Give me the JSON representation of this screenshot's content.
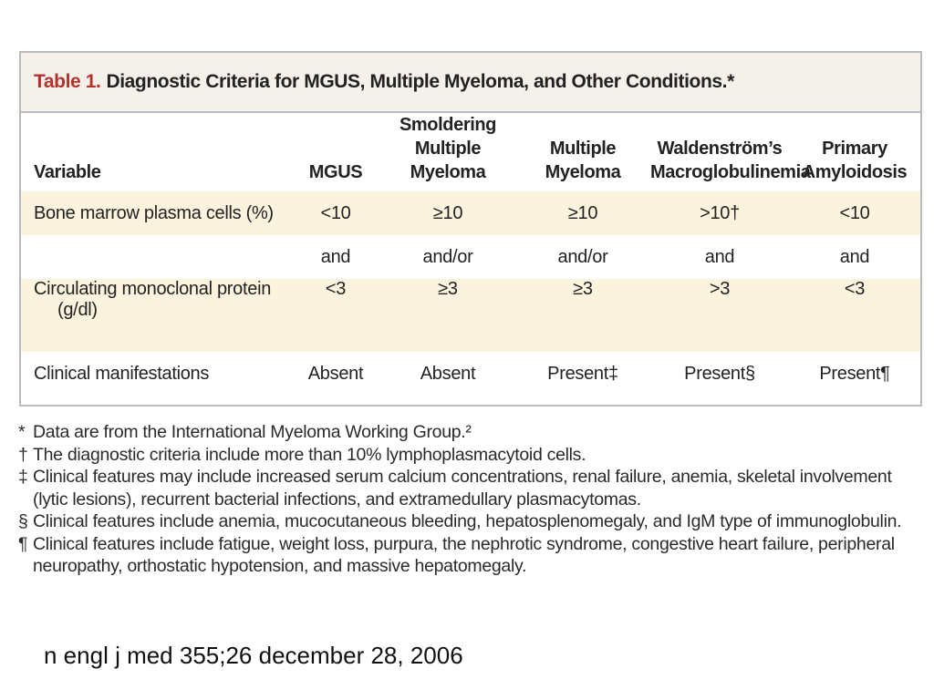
{
  "table": {
    "label": "Table 1.",
    "title": "Diagnostic Criteria for MGUS, Multiple Myeloma, and Other Conditions.*",
    "headers": [
      "Variable",
      "MGUS",
      "Smoldering Multiple Myeloma",
      "Multiple Myeloma",
      "Waldenström’s Macroglobulinemia",
      "Primary Amyloidosis"
    ],
    "rows": [
      {
        "variable": "Bone marrow plasma cells (%)",
        "variable_cont": "",
        "cells": [
          "<10",
          "≥10",
          "≥10",
          ">10†",
          "<10"
        ]
      },
      {
        "variable": "",
        "variable_cont": "",
        "cells": [
          "and",
          "and/or",
          "and/or",
          "and",
          "and"
        ]
      },
      {
        "variable": "Circulating monoclonal protein",
        "variable_cont": "(g/dl)",
        "cells": [
          "<3",
          "≥3",
          "≥3",
          ">3",
          "<3"
        ]
      },
      {
        "variable": "Clinical manifestations",
        "variable_cont": "",
        "cells": [
          "Absent",
          "Absent",
          "Present‡",
          "Present§",
          "Present¶"
        ]
      }
    ]
  },
  "footnotes": [
    {
      "mark": "*",
      "text": "Data are from the International Myeloma Working Group.²"
    },
    {
      "mark": "†",
      "text": "The diagnostic criteria include more than 10% lymphoplasmacytoid cells."
    },
    {
      "mark": "‡",
      "text": "Clinical features may include increased serum calcium concentrations, renal failure, anemia, skeletal involvement (lytic lesions), recurrent bacterial infections, and extramedullary plasmacytomas."
    },
    {
      "mark": "§",
      "text": "Clinical features include anemia, mucocutaneous bleeding, hepatosplenomegaly, and IgM type of immunoglobulin."
    },
    {
      "mark": "¶",
      "text": "Clinical features include fatigue, weight loss, purpura, the nephrotic syndrome, congestive heart failure, peripheral neuropathy, orthostatic hypotension, and massive hepatomegaly."
    }
  ],
  "citation": "n engl j med 355;26 december 28, 2006",
  "colors": {
    "title_bar": "#f4f1ea",
    "shaded_row": "#fcf3df",
    "table_label": "#b3322b",
    "border": "#b8bcc0"
  }
}
